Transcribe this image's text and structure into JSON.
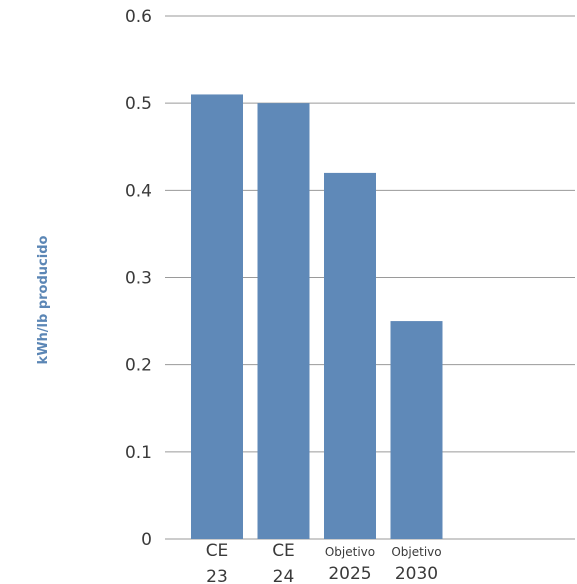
{
  "chart_data": {
    "type": "bar",
    "categories": [
      {
        "top": "CE",
        "bottom": "23"
      },
      {
        "top": "CE",
        "bottom": "24"
      },
      {
        "top": "Objetivo",
        "bottom": "2025"
      },
      {
        "top": "Objetivo",
        "bottom": "2030"
      }
    ],
    "values": [
      0.51,
      0.5,
      0.42,
      0.25
    ],
    "ylabel": "kWh/lb producido",
    "ylim": [
      0,
      0.6
    ],
    "yticks": [
      "0",
      "0.1",
      "0.2",
      "0.3",
      "0.4",
      "0.5",
      "0.6"
    ],
    "grid": true,
    "bar_color": "#5f89b8"
  }
}
